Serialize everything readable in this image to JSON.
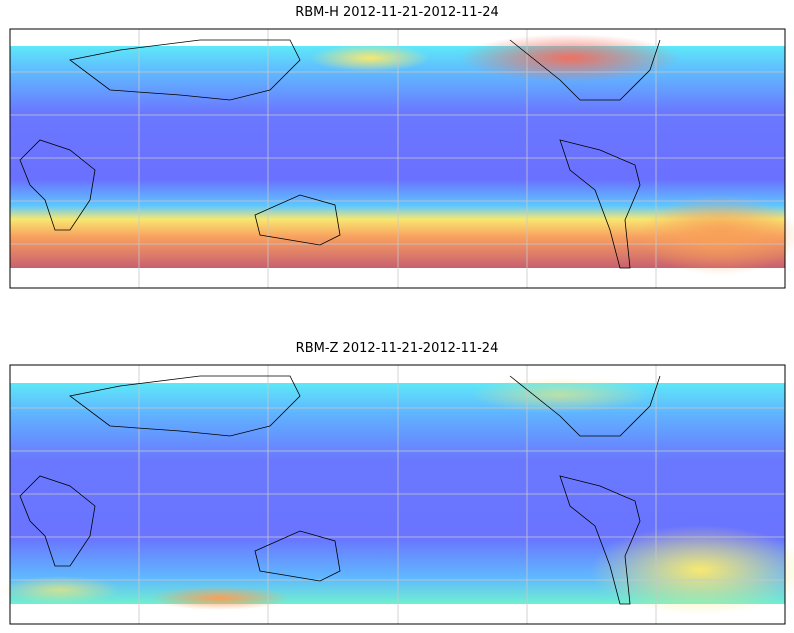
{
  "panels": [
    {
      "title": "RBM-H 2012-11-21-2012-11-24"
    },
    {
      "title": "RBM-Z 2012-11-21-2012-11-24"
    }
  ]
}
